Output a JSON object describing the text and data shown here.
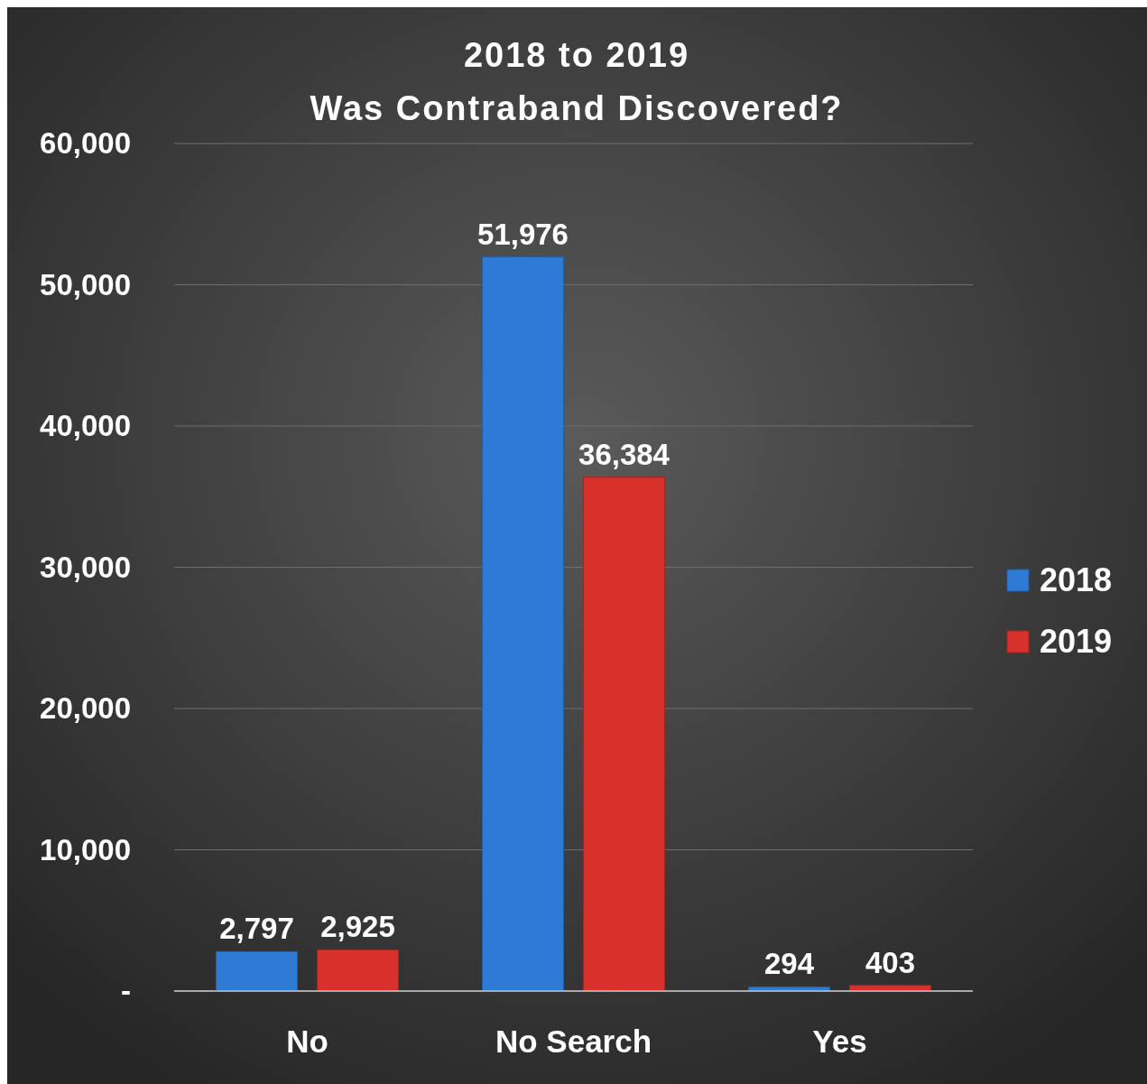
{
  "chart_data": {
    "type": "bar",
    "title": "2018 to 2019",
    "subtitle": "Was Contraband Discovered?",
    "categories": [
      "No",
      "No Search",
      "Yes"
    ],
    "series": [
      {
        "name": "2018",
        "color": "#2e7bd6",
        "values": [
          2797,
          51976,
          294
        ],
        "value_labels": [
          "2,797",
          "51,976",
          "294"
        ]
      },
      {
        "name": "2019",
        "color": "#d8302a",
        "values": [
          2925,
          36384,
          403
        ],
        "value_labels": [
          "2,925",
          "36,384",
          "403"
        ]
      }
    ],
    "ylim": [
      0,
      60000
    ],
    "yticks": [
      {
        "value": 0,
        "label": "-"
      },
      {
        "value": 10000,
        "label": "10,000"
      },
      {
        "value": 20000,
        "label": "20,000"
      },
      {
        "value": 30000,
        "label": "30,000"
      },
      {
        "value": 40000,
        "label": "40,000"
      },
      {
        "value": 50000,
        "label": "50,000"
      },
      {
        "value": 60000,
        "label": "60,000"
      }
    ],
    "grid": "y",
    "legend": "right"
  }
}
